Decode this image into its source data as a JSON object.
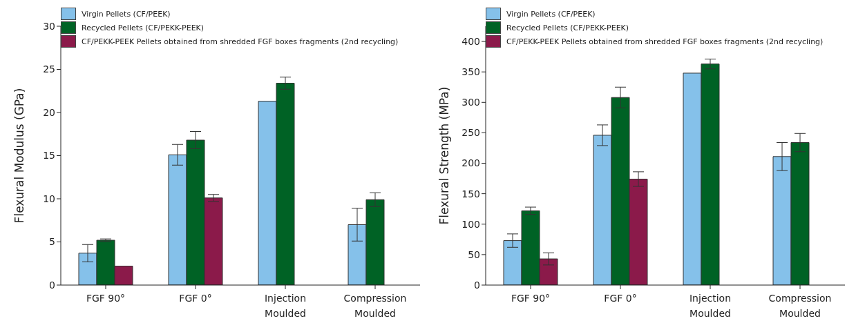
{
  "chart_data": [
    {
      "type": "bar",
      "ylabel": "Flexural Modulus (GPa)",
      "categories": [
        "FGF 90°",
        "FGF 0°",
        "Injection\nMoulded",
        "Compression\nMoulded"
      ],
      "ylim": [
        0,
        30
      ],
      "yticks": [
        0,
        5,
        10,
        15,
        20,
        25,
        30
      ],
      "grid": false,
      "legend": "top left",
      "series": [
        {
          "name": "Virgin Pellets (CF/PEEK)",
          "color": "#85c1ea",
          "values": [
            3.7,
            15.1,
            21.3,
            7.0
          ],
          "errors": [
            1.0,
            1.2,
            null,
            1.9
          ]
        },
        {
          "name": "Recycled Pellets (CF/PEKK-PEEK)",
          "color": "#006225",
          "values": [
            5.2,
            16.8,
            23.4,
            9.9
          ],
          "errors": [
            0.15,
            1.0,
            0.7,
            0.8
          ]
        },
        {
          "name": "CF/PEKK-PEEK Pellets obtained from shredded FGF boxes fragments (2nd recycling)",
          "color": "#8b1a4a",
          "values": [
            2.2,
            10.1,
            null,
            null
          ],
          "errors": [
            null,
            0.4,
            null,
            null
          ]
        }
      ]
    },
    {
      "type": "bar",
      "ylabel": "Flexural Strength (MPa)",
      "categories": [
        "FGF 90°",
        "FGF 0°",
        "Injection\nMoulded",
        "Compression\nMoulded"
      ],
      "ylim": [
        0,
        425
      ],
      "yticks": [
        0,
        50,
        100,
        150,
        200,
        250,
        300,
        350,
        400
      ],
      "grid": false,
      "legend": "top left",
      "series": [
        {
          "name": "Virgin Pellets (CF/PEEK)",
          "color": "#85c1ea",
          "values": [
            73,
            246,
            348,
            211
          ],
          "errors": [
            11,
            17,
            null,
            23
          ]
        },
        {
          "name": "Recycled Pellets (CF/PEKK-PEEK)",
          "color": "#006225",
          "values": [
            122,
            308,
            363,
            234
          ],
          "errors": [
            6,
            17,
            8,
            15
          ]
        },
        {
          "name": "CF/PEKK-PEEK Pellets obtained from shredded FGF boxes fragments (2nd recycling)",
          "color": "#8b1a4a",
          "values": [
            43,
            174,
            null,
            null
          ],
          "errors": [
            10,
            12,
            null,
            null
          ]
        }
      ]
    }
  ]
}
